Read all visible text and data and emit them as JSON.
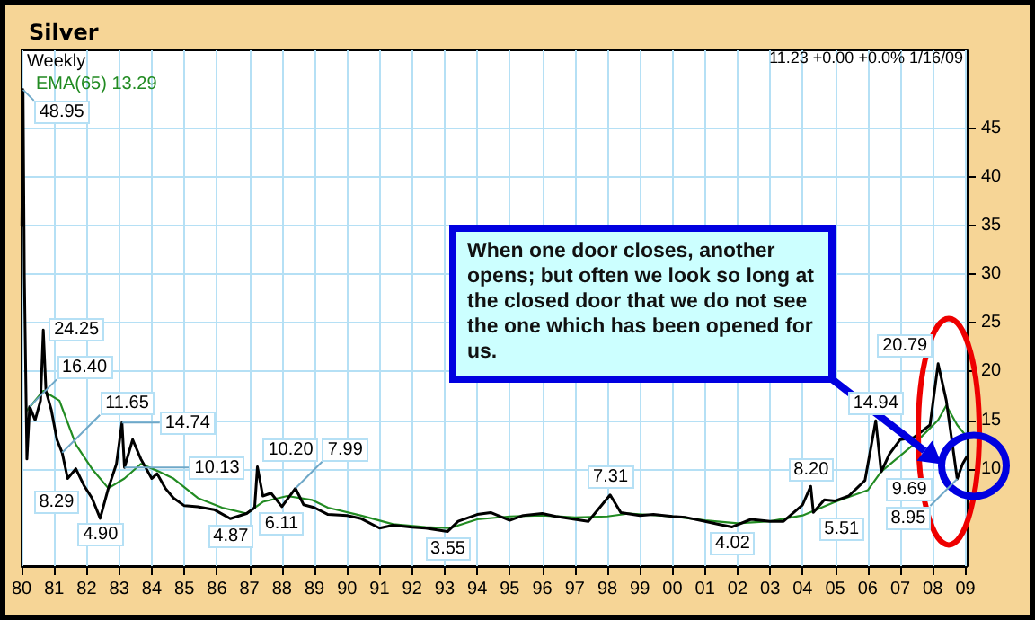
{
  "chart_data": {
    "type": "line",
    "title": "Silver",
    "annotations": [
      "Weekly",
      "11.23 +0.00 +0.0% 1/16/09",
      "When one door closes, another opens; but often we look so long at the closed door that we do not see the one which has been opened for us.",
      {
        "text": "48.95",
        "x": "1980-01-18",
        "y": 48.95
      },
      {
        "text": "24.25",
        "x": "1980-09",
        "y": 24.25
      },
      {
        "text": "16.40",
        "x": "1980-04",
        "y": 16.4
      },
      {
        "text": "11.65",
        "x": "1981-04",
        "y": 11.65
      },
      {
        "text": "8.29",
        "x": "1981-12",
        "y": 8.29
      },
      {
        "text": "4.90",
        "x": "1982-06",
        "y": 4.9
      },
      {
        "text": "14.74",
        "x": "1983-02",
        "y": 14.74
      },
      {
        "text": "10.13",
        "x": "1983-03",
        "y": 10.13
      },
      {
        "text": "4.87",
        "x": "1986-06",
        "y": 4.87
      },
      {
        "text": "10.20",
        "x": "1987-04",
        "y": 10.2
      },
      {
        "text": "6.11",
        "x": "1988-01",
        "y": 6.11
      },
      {
        "text": "7.99",
        "x": "1988-06",
        "y": 7.99
      },
      {
        "text": "3.55",
        "x": "1993-02",
        "y": 3.55
      },
      {
        "text": "7.31",
        "x": "1998-02",
        "y": 7.31
      },
      {
        "text": "4.02",
        "x": "2001-11",
        "y": 4.02
      },
      {
        "text": "8.20",
        "x": "2004-04",
        "y": 8.2
      },
      {
        "text": "5.51",
        "x": "2004-05",
        "y": 5.51
      },
      {
        "text": "14.94",
        "x": "2006-04",
        "y": 14.94
      },
      {
        "text": "9.69",
        "x": "2006-06",
        "y": 9.69
      },
      {
        "text": "20.79",
        "x": "2008-03",
        "y": 20.79
      },
      {
        "text": "8.95",
        "x": "2008-10",
        "y": 8.95
      }
    ],
    "xlim": [
      "1980-01-01",
      "2009-01-16"
    ],
    "xticks": [
      {
        "value": "1980",
        "label": "80"
      },
      {
        "value": "1981",
        "label": "81"
      },
      {
        "value": "1982",
        "label": "82"
      },
      {
        "value": "1983",
        "label": "83"
      },
      {
        "value": "1984",
        "label": "84"
      },
      {
        "value": "1985",
        "label": "85"
      },
      {
        "value": "1986",
        "label": "86"
      },
      {
        "value": "1987",
        "label": "87"
      },
      {
        "value": "1988",
        "label": "88"
      },
      {
        "value": "1989",
        "label": "89"
      },
      {
        "value": "1990",
        "label": "90"
      },
      {
        "value": "1991",
        "label": "91"
      },
      {
        "value": "1992",
        "label": "92"
      },
      {
        "value": "1993",
        "label": "93"
      },
      {
        "value": "1994",
        "label": "94"
      },
      {
        "value": "1995",
        "label": "95"
      },
      {
        "value": "1996",
        "label": "96"
      },
      {
        "value": "1997",
        "label": "97"
      },
      {
        "value": "1998",
        "label": "98"
      },
      {
        "value": "1999",
        "label": "99"
      },
      {
        "value": "2000",
        "label": "00"
      },
      {
        "value": "2001",
        "label": "01"
      },
      {
        "value": "2002",
        "label": "02"
      },
      {
        "value": "2003",
        "label": "03"
      },
      {
        "value": "2004",
        "label": "04"
      },
      {
        "value": "2005",
        "label": "05"
      },
      {
        "value": "2006",
        "label": "06"
      },
      {
        "value": "2007",
        "label": "07"
      },
      {
        "value": "2008",
        "label": "08"
      },
      {
        "value": "2009",
        "label": "09"
      }
    ],
    "ylim": [
      0,
      53
    ],
    "yticks": [
      10,
      15,
      20,
      25,
      30,
      35,
      40,
      45
    ],
    "grid": true,
    "legend": "top left",
    "marker": "none",
    "line_style": "solid",
    "series": [
      {
        "color": "#000000",
        "x": [
          "1980-01-04",
          "1980-01-18",
          "1980-02",
          "1980-03",
          "1980-04",
          "1980-06",
          "1980-08",
          "1980-09",
          "1980-10",
          "1980-12",
          "1981-02",
          "1981-04",
          "1981-06",
          "1981-09",
          "1981-12",
          "1982-03",
          "1982-06",
          "1982-09",
          "1982-12",
          "1983-02",
          "1983-03",
          "1983-06",
          "1983-09",
          "1984-01",
          "1984-03",
          "1984-06",
          "1984-09",
          "1985-01",
          "1985-06",
          "1985-12",
          "1986-06",
          "1986-12",
          "1987-03",
          "1987-04",
          "1987-06",
          "1987-09",
          "1988-01",
          "1988-06",
          "1988-09",
          "1989-01",
          "1989-06",
          "1990-01",
          "1990-06",
          "1991-01",
          "1991-06",
          "1992-01",
          "1992-06",
          "1993-02",
          "1993-06",
          "1994-01",
          "1994-06",
          "1995-01",
          "1995-06",
          "1996-01",
          "1996-06",
          "1997-01",
          "1997-06",
          "1998-02",
          "1998-06",
          "1999-01",
          "1999-06",
          "2000-01",
          "2000-06",
          "2001-01",
          "2001-06",
          "2001-11",
          "2002-06",
          "2003-01",
          "2003-06",
          "2004-01",
          "2004-04",
          "2004-05",
          "2004-09",
          "2005-01",
          "2005-06",
          "2005-12",
          "2006-04",
          "2006-06",
          "2006-09",
          "2007-01",
          "2007-06",
          "2007-12",
          "2008-03",
          "2008-06",
          "2008-08",
          "2008-10",
          "2008-12",
          "2009-01-16"
        ],
        "values": [
          35,
          48.95,
          30,
          11,
          16.4,
          15,
          17,
          24.25,
          18,
          16,
          13,
          11.65,
          9,
          10,
          8.29,
          7,
          4.9,
          8,
          10.5,
          14.74,
          10.13,
          13,
          11,
          9,
          9.5,
          8,
          7,
          6.2,
          6.1,
          5.8,
          4.87,
          5.4,
          6,
          10.2,
          7.2,
          7.5,
          6.11,
          7.99,
          6.3,
          6,
          5.3,
          5.2,
          4.9,
          3.9,
          4.2,
          4,
          3.9,
          3.55,
          4.6,
          5.3,
          5.5,
          4.7,
          5.2,
          5.4,
          5.1,
          4.8,
          4.6,
          7.31,
          5.5,
          5.2,
          5.3,
          5.1,
          5,
          4.6,
          4.3,
          4.02,
          4.8,
          4.6,
          4.6,
          6.3,
          8.2,
          5.51,
          6.8,
          6.7,
          7.2,
          8.8,
          14.94,
          9.69,
          11.5,
          13,
          13.2,
          14.5,
          20.79,
          17,
          13,
          8.95,
          10.5,
          11.23
        ]
      },
      {
        "name": "EMA(65) 13.29",
        "color": "#228b22",
        "x": [
          "1980-03",
          "1980-09",
          "1981-03",
          "1981-09",
          "1982-03",
          "1982-09",
          "1983-03",
          "1983-09",
          "1984-03",
          "1984-09",
          "1985-06",
          "1986-03",
          "1986-12",
          "1987-06",
          "1988-03",
          "1988-12",
          "1989-06",
          "1990-06",
          "1991-06",
          "1992-06",
          "1993-03",
          "1994-01",
          "1995-01",
          "1996-01",
          "1997-01",
          "1998-01",
          "1998-09",
          "2000-01",
          "2001-01",
          "2002-01",
          "2003-01",
          "2004-01",
          "2005-01",
          "2006-01",
          "2006-06",
          "2007-06",
          "2008-03",
          "2008-06",
          "2008-10",
          "2009-01-16"
        ],
        "values": [
          16,
          18,
          17,
          12.5,
          10,
          8,
          9,
          10.5,
          9.8,
          9,
          7,
          6,
          5.4,
          6.6,
          7.2,
          6.8,
          6,
          5.2,
          4.3,
          4,
          3.9,
          4.8,
          5.1,
          5.2,
          5,
          5.1,
          5.4,
          5.1,
          4.7,
          4.4,
          4.6,
          5.2,
          6.6,
          7.8,
          9.7,
          12.5,
          15,
          16.5,
          14.5,
          13.29
        ]
      }
    ]
  }
}
